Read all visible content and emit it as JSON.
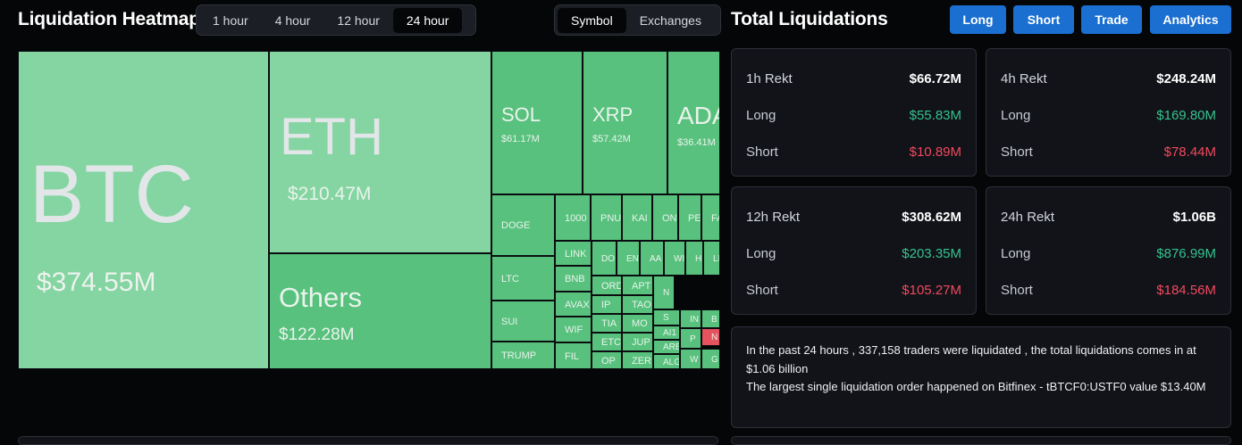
{
  "heatmap": {
    "title": "Liquidation Heatmap",
    "time_options": [
      "1 hour",
      "4 hour",
      "12 hour",
      "24 hour"
    ],
    "active_time": "24 hour",
    "group_options": [
      "Symbol",
      "Exchanges"
    ],
    "active_group": "Symbol"
  },
  "tiles": {
    "btc": {
      "symbol": "BTC",
      "value": "$374.55M"
    },
    "eth": {
      "symbol": "ETH",
      "value": "$210.47M"
    },
    "others": {
      "symbol": "Others",
      "value": "$122.28M"
    },
    "sol": {
      "symbol": "SOL",
      "value": "$61.17M"
    },
    "xrp": {
      "symbol": "XRP",
      "value": "$57.42M"
    },
    "ada": {
      "symbol": "ADA",
      "value": "$36.41M"
    },
    "small": [
      "DOGE",
      "LTC",
      "SUI",
      "TRUMP",
      "1000",
      "PNU",
      "KAI",
      "ON",
      "PE",
      "FA",
      "LINK",
      "BNB",
      "AVAX",
      "WIF",
      "FIL",
      "DO",
      "EN",
      "AA",
      "WI",
      "HI",
      "LI",
      "ORD",
      "APT",
      "IP",
      "TAO",
      "TIA",
      "MO",
      "ETC",
      "JUP",
      "OP",
      "ZER",
      "N",
      "S",
      "AI1",
      "ARB",
      "ALG",
      "IN",
      "B",
      "P",
      "G",
      "W",
      "G",
      "N"
    ]
  },
  "total": {
    "title": "Total Liquidations",
    "buttons": [
      "Long",
      "Short",
      "Trade",
      "Analytics"
    ],
    "cards": [
      {
        "label": "1h Rekt",
        "total": "$66.72M",
        "long_label": "Long",
        "long": "$55.83M",
        "short_label": "Short",
        "short": "$10.89M"
      },
      {
        "label": "4h Rekt",
        "total": "$248.24M",
        "long_label": "Long",
        "long": "$169.80M",
        "short_label": "Short",
        "short": "$78.44M"
      },
      {
        "label": "12h Rekt",
        "total": "$308.62M",
        "long_label": "Long",
        "long": "$203.35M",
        "short_label": "Short",
        "short": "$105.27M"
      },
      {
        "label": "24h Rekt",
        "total": "$1.06B",
        "long_label": "Long",
        "long": "$876.99M",
        "short_label": "Short",
        "short": "$184.56M"
      }
    ],
    "summary_line1": "In the past 24 hours , 337,158 traders were liquidated , the total liquidations comes in at $1.06 billion",
    "summary_line2": "The largest single liquidation order happened on Bitfinex - tBTCF0:USTF0 value $13.40M"
  },
  "colors": {
    "accent": "#1a6fd0",
    "positive": "#35c28d",
    "negative": "#f0495e",
    "tile_light": "#84d5a1",
    "tile": "#58c17d",
    "tile_red": "#e5535f"
  }
}
